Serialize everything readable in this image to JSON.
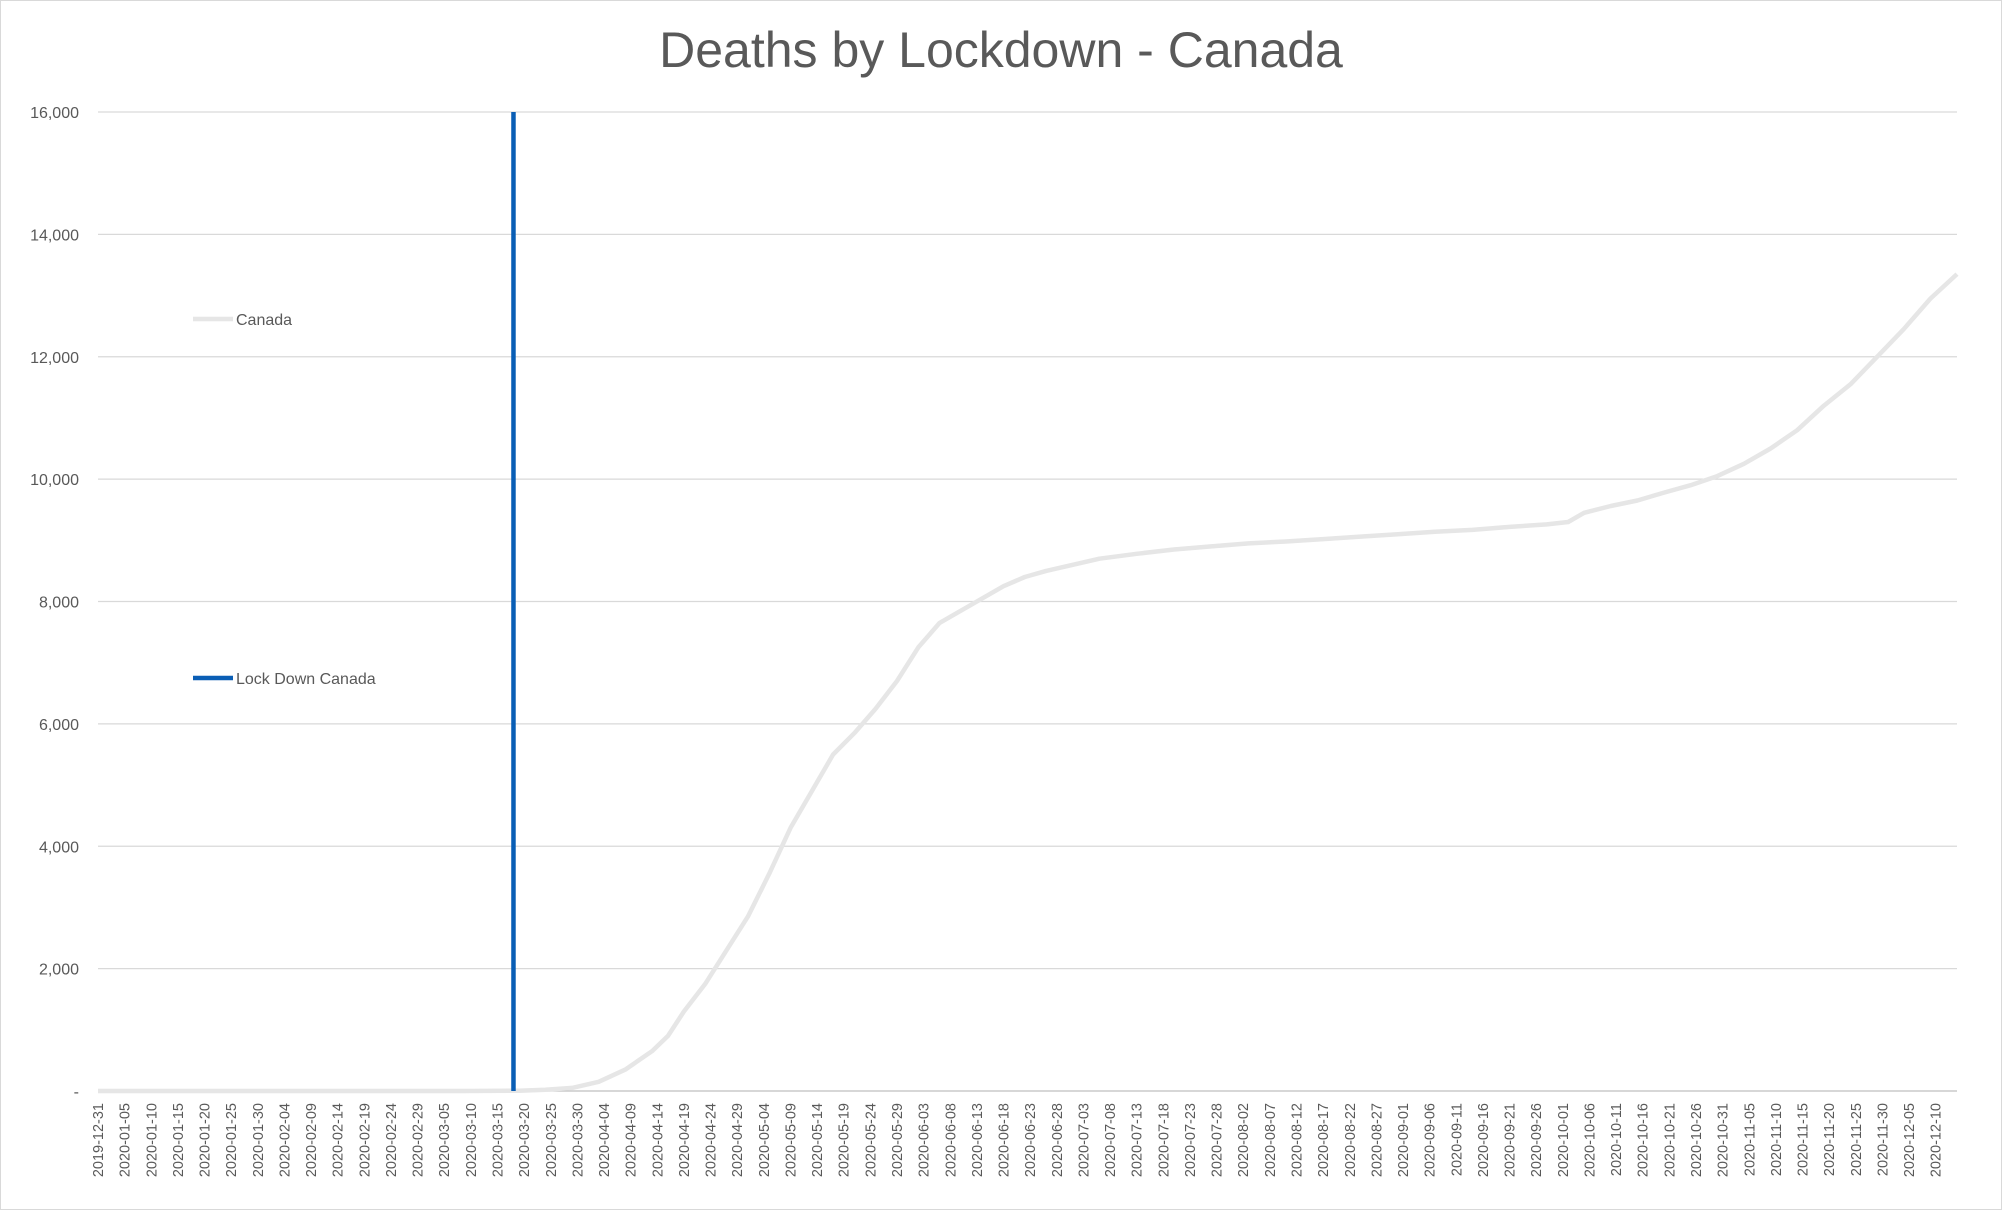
{
  "chart_data": {
    "type": "line",
    "title": "Deaths by Lockdown - Canada",
    "xlabel": "",
    "ylabel": "",
    "ylim": [
      0,
      16000
    ],
    "y_ticks": [
      0,
      2000,
      4000,
      6000,
      8000,
      10000,
      12000,
      14000,
      16000
    ],
    "y_tick_labels": [
      "-",
      "2,000",
      "4,000",
      "6,000",
      "8,000",
      "10,000",
      "12,000",
      "14,000",
      "16,000"
    ],
    "x_tick_labels": [
      "2019-12-31",
      "2020-01-05",
      "2020-01-10",
      "2020-01-15",
      "2020-01-20",
      "2020-01-25",
      "2020-01-30",
      "2020-02-04",
      "2020-02-09",
      "2020-02-14",
      "2020-02-19",
      "2020-02-24",
      "2020-02-29",
      "2020-03-05",
      "2020-03-10",
      "2020-03-15",
      "2020-03-20",
      "2020-03-25",
      "2020-03-30",
      "2020-04-04",
      "2020-04-09",
      "2020-04-14",
      "2020-04-19",
      "2020-04-24",
      "2020-04-29",
      "2020-05-04",
      "2020-05-09",
      "2020-05-14",
      "2020-05-19",
      "2020-05-24",
      "2020-05-29",
      "2020-06-03",
      "2020-06-08",
      "2020-06-13",
      "2020-06-18",
      "2020-06-23",
      "2020-06-28",
      "2020-07-03",
      "2020-07-08",
      "2020-07-13",
      "2020-07-18",
      "2020-07-23",
      "2020-07-28",
      "2020-08-02",
      "2020-08-07",
      "2020-08-12",
      "2020-08-17",
      "2020-08-22",
      "2020-08-27",
      "2020-09-01",
      "2020-09-06",
      "2020-09-11",
      "2020-09-16",
      "2020-09-21",
      "2020-09-26",
      "2020-10-01",
      "2020-10-06",
      "2020-10-11",
      "2020-10-16",
      "2020-10-21",
      "2020-10-26",
      "2020-10-31",
      "2020-11-05",
      "2020-11-10",
      "2020-11-15",
      "2020-11-20",
      "2020-11-25",
      "2020-11-30",
      "2020-12-05",
      "2020-12-10"
    ],
    "x_range": [
      "2019-12-31",
      "2020-12-14"
    ],
    "grid": true,
    "legend_position": "left",
    "series": [
      {
        "name": "Canada",
        "color": "#e6e6e6",
        "points": [
          [
            "2019-12-31",
            0
          ],
          [
            "2020-03-09",
            0
          ],
          [
            "2020-03-19",
            5
          ],
          [
            "2020-03-24",
            20
          ],
          [
            "2020-03-29",
            50
          ],
          [
            "2020-04-03",
            150
          ],
          [
            "2020-04-08",
            350
          ],
          [
            "2020-04-13",
            650
          ],
          [
            "2020-04-16",
            900
          ],
          [
            "2020-04-19",
            1300
          ],
          [
            "2020-04-23",
            1750
          ],
          [
            "2020-04-27",
            2300
          ],
          [
            "2020-05-01",
            2850
          ],
          [
            "2020-05-05",
            3550
          ],
          [
            "2020-05-09",
            4300
          ],
          [
            "2020-05-13",
            4900
          ],
          [
            "2020-05-17",
            5500
          ],
          [
            "2020-05-21",
            5850
          ],
          [
            "2020-05-25",
            6250
          ],
          [
            "2020-05-29",
            6700
          ],
          [
            "2020-06-02",
            7250
          ],
          [
            "2020-06-06",
            7650
          ],
          [
            "2020-06-10",
            7850
          ],
          [
            "2020-06-14",
            8050
          ],
          [
            "2020-06-18",
            8250
          ],
          [
            "2020-06-22",
            8400
          ],
          [
            "2020-06-26",
            8500
          ],
          [
            "2020-07-01",
            8600
          ],
          [
            "2020-07-06",
            8700
          ],
          [
            "2020-07-13",
            8780
          ],
          [
            "2020-07-20",
            8850
          ],
          [
            "2020-07-27",
            8900
          ],
          [
            "2020-08-03",
            8950
          ],
          [
            "2020-08-10",
            8980
          ],
          [
            "2020-08-17",
            9020
          ],
          [
            "2020-08-24",
            9060
          ],
          [
            "2020-08-31",
            9100
          ],
          [
            "2020-09-07",
            9140
          ],
          [
            "2020-09-14",
            9170
          ],
          [
            "2020-09-21",
            9220
          ],
          [
            "2020-09-28",
            9260
          ],
          [
            "2020-10-02",
            9300
          ],
          [
            "2020-10-05",
            9450
          ],
          [
            "2020-10-10",
            9560
          ],
          [
            "2020-10-15",
            9650
          ],
          [
            "2020-10-20",
            9780
          ],
          [
            "2020-10-25",
            9900
          ],
          [
            "2020-10-30",
            10050
          ],
          [
            "2020-11-04",
            10250
          ],
          [
            "2020-11-09",
            10500
          ],
          [
            "2020-11-14",
            10800
          ],
          [
            "2020-11-19",
            11200
          ],
          [
            "2020-11-24",
            11550
          ],
          [
            "2020-11-29",
            12000
          ],
          [
            "2020-12-04",
            12450
          ],
          [
            "2020-12-09",
            12950
          ],
          [
            "2020-12-14",
            13350
          ]
        ]
      },
      {
        "name": "Lock Down Canada",
        "color": "#0a5eb5",
        "type": "vertical-line",
        "x": "2020-03-18",
        "y_range": [
          0,
          16000
        ]
      }
    ]
  }
}
